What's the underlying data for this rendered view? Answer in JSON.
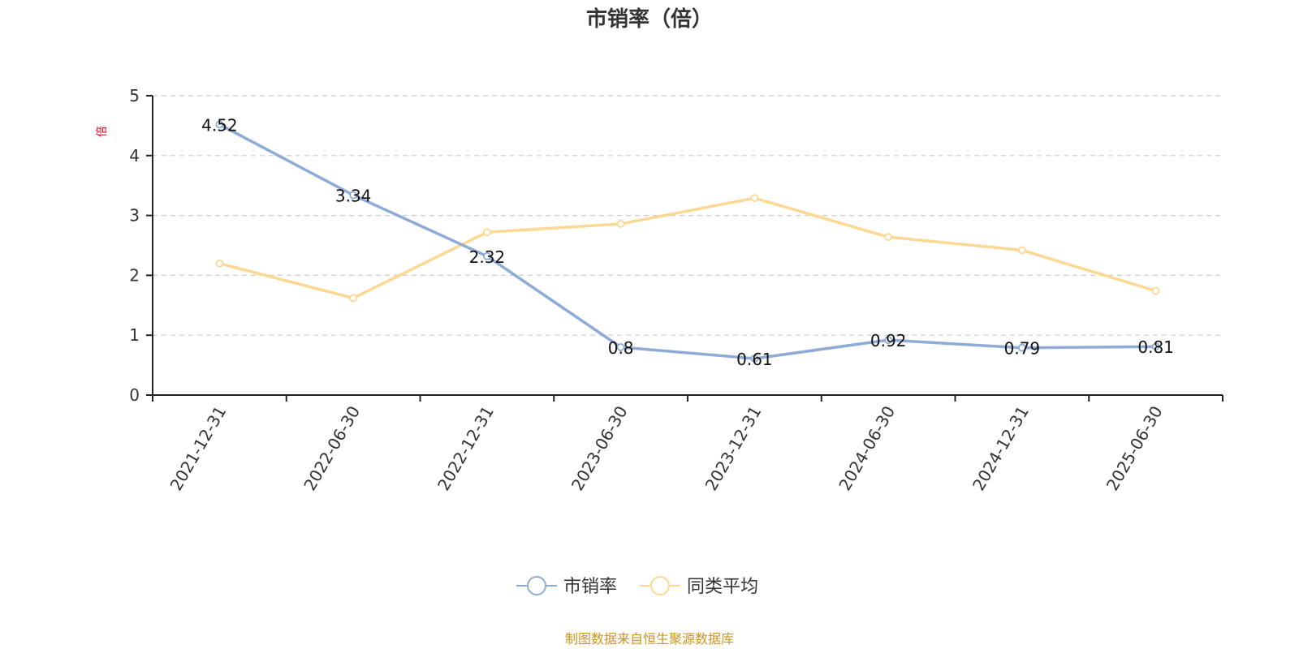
{
  "chart_data": {
    "type": "line",
    "title": "市销率（倍）",
    "ylabel": "倍",
    "categories": [
      "2021-12-31",
      "2022-06-30",
      "2022-12-31",
      "2023-06-30",
      "2023-12-31",
      "2024-06-30",
      "2024-12-31",
      "2025-06-30"
    ],
    "ylim": [
      0,
      5
    ],
    "yticks": [
      0,
      1,
      2,
      3,
      4,
      5
    ],
    "grid": true,
    "legend_position": "bottom",
    "series": [
      {
        "name": "市销率",
        "color": "#8dabd6",
        "values": [
          4.52,
          3.34,
          2.32,
          0.8,
          0.61,
          0.92,
          0.79,
          0.81
        ],
        "show_labels": true
      },
      {
        "name": "同类平均",
        "color": "#fcd893",
        "values": [
          2.2,
          1.62,
          2.72,
          2.86,
          3.29,
          2.64,
          2.42,
          1.74
        ],
        "show_labels": false
      }
    ]
  },
  "source_note": "制图数据来自恒生聚源数据库"
}
